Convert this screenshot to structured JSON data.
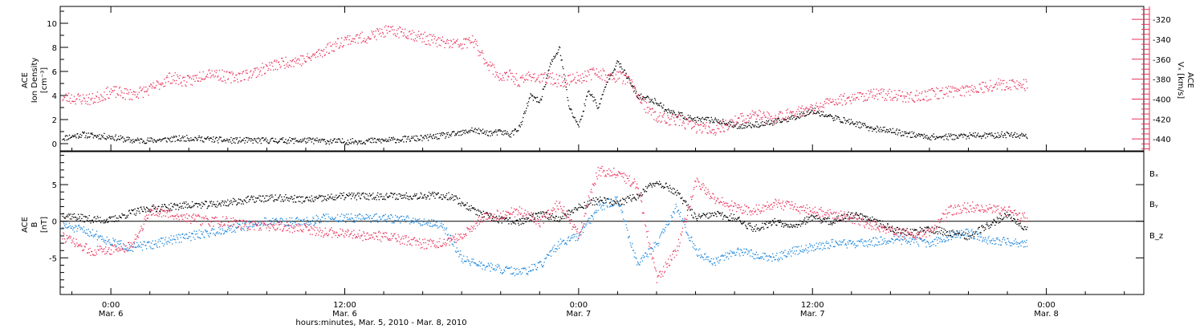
{
  "colors": {
    "black": "#000000",
    "pink": "#e8325a",
    "blue": "#1a86dd",
    "axis": "#000000"
  },
  "x_axis": {
    "label": "hours:minutes, Mar. 5, 2010 - Mar. 8, 2010",
    "range_hours": [
      -2.6,
      53.0
    ],
    "ticks": [
      {
        "hours": 0,
        "time": "0:00",
        "date": "Mar. 6"
      },
      {
        "hours": 12,
        "time": "12:00",
        "date": "Mar. 6"
      },
      {
        "hours": 24,
        "time": "0:00",
        "date": "Mar. 7"
      },
      {
        "hours": 36,
        "time": "12:00",
        "date": "Mar. 7"
      },
      {
        "hours": 48,
        "time": "0:00",
        "date": "Mar. 8"
      }
    ]
  },
  "chart_data": [
    {
      "type": "scatter",
      "panel": "top",
      "ylabel_left": [
        "ACE",
        "Ion Density",
        "[cm⁻³]"
      ],
      "ylabel_right": [
        "ACE",
        "Vₓ [km/s]"
      ],
      "ylim_left": [
        -0.6,
        11.4
      ],
      "ylim_right": [
        -452,
        -307
      ],
      "yticks_left": [
        0,
        2,
        4,
        6,
        8,
        10
      ],
      "yticks_right": [
        -440,
        -420,
        -400,
        -380,
        -360,
        -340,
        -320
      ],
      "series": [
        {
          "name": "",
          "axis": "left",
          "color": "#000000",
          "x_hours": [
            -2.5,
            -1.5,
            -1,
            0,
            1,
            2,
            3,
            4,
            5,
            6,
            8,
            10,
            12,
            14,
            15,
            16,
            17,
            18,
            18.5,
            19,
            19.5,
            20,
            20.5,
            21,
            21.5,
            22,
            22.5,
            23,
            23.5,
            24,
            24.5,
            25,
            25.5,
            26,
            26.5,
            27,
            27.5,
            28,
            28.5,
            29,
            30,
            31,
            32,
            33,
            34,
            35,
            36,
            37,
            38,
            39,
            40,
            41,
            42,
            43,
            44,
            45,
            46,
            47
          ],
          "y": [
            0.5,
            0.8,
            0.7,
            0.6,
            0.3,
            0.3,
            0.4,
            0.5,
            0.4,
            0.3,
            0.3,
            0.3,
            0.2,
            0.3,
            0.4,
            0.5,
            0.7,
            0.9,
            1.2,
            1.0,
            0.9,
            1.0,
            0.8,
            1.5,
            4.0,
            3.5,
            6.5,
            8.0,
            3.0,
            1.5,
            4.5,
            3.0,
            5.5,
            6.8,
            5.5,
            4.0,
            3.8,
            3.5,
            2.8,
            2.5,
            2.0,
            2.0,
            1.5,
            1.6,
            1.8,
            2.2,
            2.8,
            2.2,
            1.8,
            1.3,
            1.1,
            0.8,
            0.6,
            0.6,
            0.7,
            0.7,
            0.8,
            0.7
          ]
        },
        {
          "name": "",
          "axis": "right",
          "color": "#e8325a",
          "x_hours": [
            -2.5,
            -1,
            0,
            1,
            2,
            3,
            4,
            5,
            6,
            7,
            8,
            9,
            10,
            11,
            12,
            13,
            14,
            15,
            16,
            17,
            18,
            18.5,
            19,
            19.5,
            20,
            20.5,
            21,
            21.5,
            22,
            22.5,
            23,
            23.5,
            24,
            24.5,
            25,
            25.5,
            26,
            26.5,
            27,
            27.5,
            28,
            28.5,
            29,
            30,
            31,
            32,
            33,
            34,
            35,
            36,
            37,
            38,
            39,
            40,
            41,
            42,
            43,
            44,
            45,
            46,
            47
          ],
          "y": [
            -398,
            -400,
            -392,
            -395,
            -390,
            -378,
            -382,
            -372,
            -378,
            -375,
            -368,
            -362,
            -360,
            -350,
            -340,
            -338,
            -332,
            -332,
            -338,
            -343,
            -345,
            -340,
            -355,
            -368,
            -378,
            -376,
            -383,
            -375,
            -380,
            -378,
            -382,
            -380,
            -378,
            -375,
            -372,
            -378,
            -376,
            -380,
            -395,
            -410,
            -418,
            -420,
            -420,
            -428,
            -430,
            -422,
            -415,
            -420,
            -412,
            -410,
            -402,
            -398,
            -395,
            -395,
            -398,
            -395,
            -392,
            -390,
            -386,
            -384,
            -386
          ]
        }
      ]
    },
    {
      "type": "scatter",
      "panel": "bottom",
      "ylabel_left": [
        "ACE",
        "B",
        "[nT]"
      ],
      "ylim": [
        -10,
        9.5
      ],
      "yticks": [
        -5,
        0,
        5
      ],
      "series": [
        {
          "name": "Bₓ",
          "color": "#000000",
          "x_hours": [
            -2.5,
            -1.5,
            -1,
            0,
            1,
            2,
            3,
            4,
            5,
            6,
            7,
            8,
            9,
            10,
            11,
            12,
            13,
            14,
            15,
            16,
            17,
            17.5,
            18,
            19,
            20,
            21,
            22,
            23,
            24,
            25,
            26,
            27,
            28,
            29,
            30,
            31,
            32,
            33,
            34,
            35,
            36,
            37,
            38,
            39,
            40,
            41,
            42,
            43,
            44,
            45,
            46,
            47
          ],
          "y": [
            1.0,
            0.5,
            0.3,
            0.2,
            1.2,
            1.8,
            2.0,
            2.3,
            2.3,
            2.6,
            3.0,
            3.2,
            3.2,
            3.0,
            3.2,
            3.5,
            3.5,
            3.5,
            3.5,
            3.6,
            3.5,
            3.5,
            2.5,
            1.0,
            0.2,
            0.0,
            1.0,
            0.5,
            2.0,
            3.0,
            2.5,
            3.5,
            5.5,
            4.0,
            0.5,
            1.0,
            0.5,
            -1.0,
            0.0,
            -0.5,
            0.5,
            0.0,
            1.0,
            0.5,
            -1.0,
            -1.5,
            -1.0,
            -1.5,
            -2.0,
            -0.5,
            1.0,
            -1.0
          ]
        },
        {
          "name": "Bᵧ",
          "color": "#1a86dd",
          "x_hours": [
            -2.5,
            -1,
            0,
            1,
            2,
            3,
            4,
            5,
            6,
            7,
            8,
            9,
            10,
            11,
            12,
            13,
            14,
            15,
            16,
            17,
            18,
            19,
            20,
            21,
            22,
            23,
            24,
            25,
            26,
            27,
            28,
            29,
            30,
            31,
            32,
            33,
            34,
            35,
            36,
            37,
            38,
            39,
            40,
            41,
            42,
            43,
            44,
            45,
            46,
            47
          ],
          "y": [
            -0.5,
            -1.5,
            -2.8,
            -3.5,
            -3.2,
            -2.5,
            -2.0,
            -1.5,
            -1.0,
            -0.5,
            0.0,
            0.0,
            0.0,
            0.5,
            0.5,
            0.5,
            0.5,
            0.3,
            0.0,
            -0.5,
            -5.0,
            -6.0,
            -6.5,
            -7.0,
            -6.0,
            -3.0,
            -2.0,
            2.0,
            3.0,
            -6.0,
            -3.0,
            2.0,
            -4.0,
            -5.5,
            -4.0,
            -4.5,
            -5.0,
            -4.0,
            -3.5,
            -3.0,
            -3.0,
            -2.8,
            -2.5,
            -2.5,
            -3.0,
            -2.0,
            -1.5,
            -2.5,
            -2.8,
            -3.0
          ]
        },
        {
          "name": "B_z",
          "color": "#e8325a",
          "x_hours": [
            -2.5,
            -1.5,
            -1,
            0,
            1,
            2,
            3,
            4,
            5,
            6,
            7,
            8,
            9,
            10,
            11,
            12,
            13,
            14,
            15,
            16,
            17,
            18,
            19,
            20,
            21,
            22,
            23,
            24,
            24.5,
            25,
            26,
            27,
            28,
            29,
            30,
            31,
            32,
            33,
            34,
            35,
            36,
            37,
            38,
            39,
            40,
            41,
            42,
            43,
            44,
            45,
            46,
            47
          ],
          "y": [
            -2.0,
            -3.5,
            -4.0,
            -3.8,
            -3.5,
            1.5,
            1.0,
            0.5,
            0.0,
            0.0,
            -0.5,
            -0.5,
            -0.8,
            -1.0,
            -1.5,
            -1.5,
            -2.0,
            -2.0,
            -2.5,
            -3.0,
            -3.0,
            -2.0,
            0.5,
            1.0,
            1.5,
            0.0,
            2.5,
            -2.0,
            3.0,
            7.0,
            6.5,
            5.0,
            -8.0,
            -4.0,
            5.5,
            3.0,
            2.0,
            1.5,
            2.5,
            2.0,
            1.5,
            1.0,
            0.5,
            -0.5,
            -1.0,
            -2.0,
            -1.5,
            1.5,
            2.0,
            2.0,
            1.5,
            0.5
          ]
        }
      ]
    }
  ]
}
